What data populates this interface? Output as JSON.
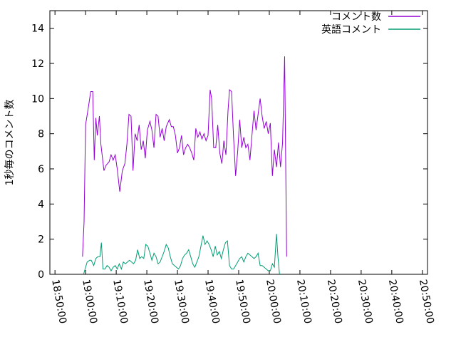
{
  "chart_data": {
    "type": "line",
    "ylabel": "1秒毎のコメント数",
    "xlabel": "",
    "ylim": [
      0,
      15
    ],
    "y_ticks": [
      0,
      2,
      4,
      6,
      8,
      10,
      12,
      14
    ],
    "x_ticks": [
      "18:50:00",
      "19:00:00",
      "19:10:00",
      "19:20:00",
      "19:30:00",
      "19:40:00",
      "19:50:00",
      "20:00:00",
      "20:10:00",
      "20:20:00",
      "20:30:00",
      "20:40:00",
      "20:50:00"
    ],
    "xlim": [
      "18:48:20",
      "20:51:40"
    ],
    "grid": false,
    "legend_position": "top-right",
    "colors": {
      "series_0": "#9400d3",
      "series_1": "#009e73"
    },
    "series": [
      {
        "name": "コメント数",
        "points": [
          [
            "18:59:00",
            1.0
          ],
          [
            "18:59:30",
            3.0
          ],
          [
            "19:00:00",
            8.5
          ],
          [
            "19:01:00",
            9.6
          ],
          [
            "19:01:40",
            10.4
          ],
          [
            "19:02:20",
            10.4
          ],
          [
            "19:02:50",
            6.5
          ],
          [
            "19:03:20",
            8.9
          ],
          [
            "19:03:50",
            7.9
          ],
          [
            "19:04:30",
            9.0
          ],
          [
            "19:05:00",
            7.4
          ],
          [
            "19:06:00",
            5.9
          ],
          [
            "19:06:40",
            6.2
          ],
          [
            "19:07:40",
            6.4
          ],
          [
            "19:08:20",
            6.8
          ],
          [
            "19:09:00",
            6.5
          ],
          [
            "19:09:40",
            6.8
          ],
          [
            "19:10:20",
            6.0
          ],
          [
            "19:11:10",
            4.7
          ],
          [
            "19:12:00",
            5.9
          ],
          [
            "19:12:50",
            6.3
          ],
          [
            "19:13:30",
            7.4
          ],
          [
            "19:14:10",
            9.1
          ],
          [
            "19:14:50",
            9.0
          ],
          [
            "19:15:30",
            5.9
          ],
          [
            "19:16:10",
            8.0
          ],
          [
            "19:16:50",
            7.6
          ],
          [
            "19:17:30",
            8.5
          ],
          [
            "19:18:10",
            7.1
          ],
          [
            "19:18:50",
            7.6
          ],
          [
            "19:19:30",
            6.6
          ],
          [
            "19:20:10",
            8.2
          ],
          [
            "19:21:00",
            8.7
          ],
          [
            "19:21:40",
            8.2
          ],
          [
            "19:22:20",
            7.2
          ],
          [
            "19:23:00",
            9.1
          ],
          [
            "19:23:40",
            9.0
          ],
          [
            "19:24:20",
            7.8
          ],
          [
            "19:25:00",
            8.3
          ],
          [
            "19:25:40",
            7.6
          ],
          [
            "19:26:20",
            8.4
          ],
          [
            "19:27:20",
            8.8
          ],
          [
            "19:28:00",
            8.4
          ],
          [
            "19:28:40",
            8.4
          ],
          [
            "19:29:20",
            7.9
          ],
          [
            "19:30:00",
            6.9
          ],
          [
            "19:30:40",
            7.2
          ],
          [
            "19:31:20",
            7.9
          ],
          [
            "19:32:00",
            6.8
          ],
          [
            "19:32:40",
            7.2
          ],
          [
            "19:33:20",
            7.4
          ],
          [
            "19:34:00",
            7.2
          ],
          [
            "19:34:40",
            6.9
          ],
          [
            "19:35:20",
            6.5
          ],
          [
            "19:36:00",
            8.3
          ],
          [
            "19:36:40",
            7.8
          ],
          [
            "19:37:20",
            8.1
          ],
          [
            "19:38:00",
            7.7
          ],
          [
            "19:38:40",
            8.0
          ],
          [
            "19:39:20",
            7.6
          ],
          [
            "19:40:00",
            7.9
          ],
          [
            "19:40:40",
            10.5
          ],
          [
            "19:41:10",
            10.0
          ],
          [
            "19:41:50",
            7.2
          ],
          [
            "19:42:30",
            7.2
          ],
          [
            "19:43:10",
            8.5
          ],
          [
            "19:43:50",
            6.9
          ],
          [
            "19:44:30",
            6.3
          ],
          [
            "19:45:10",
            7.6
          ],
          [
            "19:45:50",
            6.8
          ],
          [
            "19:46:30",
            9.3
          ],
          [
            "19:47:00",
            10.5
          ],
          [
            "19:47:40",
            10.4
          ],
          [
            "19:48:20",
            7.8
          ],
          [
            "19:49:00",
            5.6
          ],
          [
            "19:49:40",
            7.0
          ],
          [
            "19:50:20",
            8.8
          ],
          [
            "19:51:00",
            7.2
          ],
          [
            "19:51:40",
            7.8
          ],
          [
            "19:52:20",
            7.2
          ],
          [
            "19:53:00",
            7.4
          ],
          [
            "19:53:40",
            6.5
          ],
          [
            "19:54:20",
            7.9
          ],
          [
            "19:55:00",
            9.3
          ],
          [
            "19:55:40",
            8.2
          ],
          [
            "19:56:20",
            9.1
          ],
          [
            "19:57:00",
            10.0
          ],
          [
            "19:57:40",
            9.0
          ],
          [
            "19:58:20",
            8.3
          ],
          [
            "19:59:00",
            8.7
          ],
          [
            "19:59:40",
            8.0
          ],
          [
            "20:00:20",
            8.6
          ],
          [
            "20:01:00",
            5.6
          ],
          [
            "20:01:40",
            7.1
          ],
          [
            "20:02:20",
            6.1
          ],
          [
            "20:03:00",
            7.5
          ],
          [
            "20:03:40",
            6.1
          ],
          [
            "20:04:20",
            7.5
          ],
          [
            "20:05:00",
            12.4
          ],
          [
            "20:05:40",
            1.0
          ]
        ]
      },
      {
        "name": "英語コメント",
        "points": [
          [
            "18:59:20",
            0.0
          ],
          [
            "18:59:50",
            0.3
          ],
          [
            "19:00:30",
            0.7
          ],
          [
            "19:01:20",
            0.8
          ],
          [
            "19:01:50",
            0.8
          ],
          [
            "19:02:40",
            0.5
          ],
          [
            "19:03:20",
            0.9
          ],
          [
            "19:04:00",
            1.0
          ],
          [
            "19:04:40",
            1.0
          ],
          [
            "19:05:10",
            1.8
          ],
          [
            "19:05:40",
            0.3
          ],
          [
            "19:06:20",
            0.3
          ],
          [
            "19:07:00",
            0.5
          ],
          [
            "19:07:40",
            0.4
          ],
          [
            "19:08:20",
            0.2
          ],
          [
            "19:09:00",
            0.4
          ],
          [
            "19:09:40",
            0.5
          ],
          [
            "19:10:20",
            0.3
          ],
          [
            "19:11:00",
            0.6
          ],
          [
            "19:11:40",
            0.3
          ],
          [
            "19:12:20",
            0.7
          ],
          [
            "19:13:00",
            0.6
          ],
          [
            "19:13:40",
            0.7
          ],
          [
            "19:14:20",
            0.8
          ],
          [
            "19:15:00",
            0.7
          ],
          [
            "19:15:40",
            0.6
          ],
          [
            "19:16:20",
            0.8
          ],
          [
            "19:17:00",
            1.4
          ],
          [
            "19:17:40",
            0.9
          ],
          [
            "19:18:20",
            1.0
          ],
          [
            "19:19:00",
            0.9
          ],
          [
            "19:19:40",
            1.7
          ],
          [
            "19:20:20",
            1.6
          ],
          [
            "19:21:00",
            1.2
          ],
          [
            "19:21:40",
            0.8
          ],
          [
            "19:22:20",
            1.2
          ],
          [
            "19:23:00",
            1.0
          ],
          [
            "19:23:40",
            0.6
          ],
          [
            "19:24:20",
            0.7
          ],
          [
            "19:25:00",
            1.0
          ],
          [
            "19:25:40",
            1.3
          ],
          [
            "19:26:20",
            1.7
          ],
          [
            "19:27:00",
            1.5
          ],
          [
            "19:27:40",
            1.0
          ],
          [
            "19:28:20",
            0.6
          ],
          [
            "19:29:00",
            0.5
          ],
          [
            "19:29:40",
            0.4
          ],
          [
            "19:30:20",
            0.3
          ],
          [
            "19:31:00",
            0.5
          ],
          [
            "19:31:40",
            0.9
          ],
          [
            "19:32:20",
            1.1
          ],
          [
            "19:33:00",
            1.2
          ],
          [
            "19:33:40",
            1.4
          ],
          [
            "19:34:20",
            1.0
          ],
          [
            "19:35:00",
            0.6
          ],
          [
            "19:35:40",
            0.4
          ],
          [
            "19:36:20",
            0.7
          ],
          [
            "19:37:00",
            1.0
          ],
          [
            "19:37:40",
            1.6
          ],
          [
            "19:38:20",
            2.2
          ],
          [
            "19:39:00",
            1.7
          ],
          [
            "19:39:40",
            1.9
          ],
          [
            "19:40:20",
            1.7
          ],
          [
            "19:41:00",
            1.4
          ],
          [
            "19:41:40",
            1.0
          ],
          [
            "19:42:20",
            1.6
          ],
          [
            "19:43:00",
            1.1
          ],
          [
            "19:43:40",
            1.3
          ],
          [
            "19:44:20",
            0.9
          ],
          [
            "19:45:00",
            1.4
          ],
          [
            "19:45:40",
            1.8
          ],
          [
            "19:46:20",
            1.9
          ],
          [
            "19:47:00",
            0.5
          ],
          [
            "19:47:40",
            0.3
          ],
          [
            "19:48:20",
            0.3
          ],
          [
            "19:49:00",
            0.5
          ],
          [
            "19:49:40",
            0.7
          ],
          [
            "19:50:20",
            0.9
          ],
          [
            "19:51:00",
            1.0
          ],
          [
            "19:51:40",
            0.7
          ],
          [
            "19:52:20",
            1.0
          ],
          [
            "19:53:00",
            1.2
          ],
          [
            "19:53:40",
            1.1
          ],
          [
            "19:54:20",
            1.0
          ],
          [
            "19:55:00",
            0.9
          ],
          [
            "19:55:40",
            1.0
          ],
          [
            "19:56:20",
            1.2
          ],
          [
            "19:57:00",
            0.5
          ],
          [
            "19:57:40",
            0.5
          ],
          [
            "19:58:20",
            0.4
          ],
          [
            "19:59:00",
            0.3
          ],
          [
            "19:59:40",
            0.2
          ],
          [
            "20:00:20",
            0.2
          ],
          [
            "20:01:00",
            0.6
          ],
          [
            "20:01:40",
            0.4
          ],
          [
            "20:02:20",
            2.3
          ],
          [
            "20:02:50",
            1.0
          ],
          [
            "20:03:20",
            0.0
          ]
        ]
      }
    ]
  }
}
